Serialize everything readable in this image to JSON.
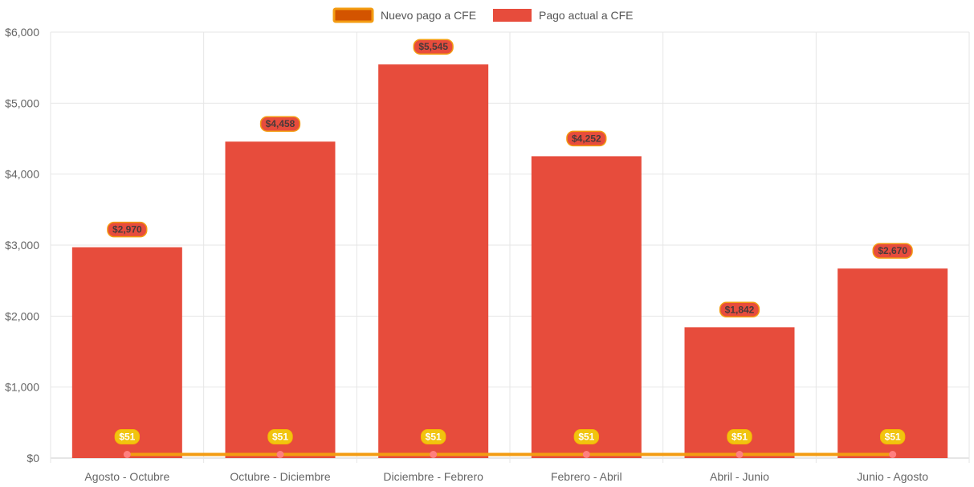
{
  "chart_data": {
    "type": "bar",
    "categories": [
      "Agosto - Octubre",
      "Octubre - Diciembre",
      "Diciembre - Febrero",
      "Febrero - Abril",
      "Abril - Junio",
      "Junio - Agosto"
    ],
    "series": [
      {
        "name": "Nuevo pago a CFE",
        "type": "line",
        "values": [
          51,
          51,
          51,
          51,
          51,
          51
        ],
        "labels": [
          "$51",
          "$51",
          "$51",
          "$51",
          "$51",
          "$51"
        ],
        "color": "#f39c12",
        "fill_color": "#d35400",
        "point_color": "#ff7f7f"
      },
      {
        "name": "Pago actual a CFE",
        "type": "bar",
        "values": [
          2970,
          4458,
          5545,
          4252,
          1842,
          2670
        ],
        "labels": [
          "$2,970",
          "$4,458",
          "$5,545",
          "$4,252",
          "$1,842",
          "$2,670"
        ],
        "color": "#e74c3c"
      }
    ],
    "ylim": [
      0,
      6000
    ],
    "yticks": [
      0,
      1000,
      2000,
      3000,
      4000,
      5000,
      6000
    ],
    "ytick_labels": [
      "$0",
      "$1,000",
      "$2,000",
      "$3,000",
      "$4,000",
      "$5,000",
      "$6,000"
    ],
    "grid": true,
    "legend_position": "top-center"
  }
}
